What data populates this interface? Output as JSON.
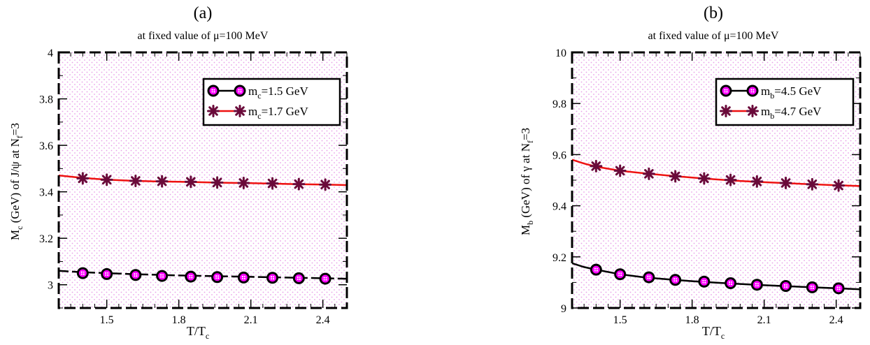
{
  "colors": {
    "background_dots": "#e8a0e8",
    "red_series": "#ee1111",
    "black_series": "#000000",
    "magenta_marker": "#ff00ff",
    "star_marker": "#6a0a3a"
  },
  "chart_data": [
    {
      "panel_label": "(a)",
      "type": "line",
      "title": "at fixed value of μ=100 MeV",
      "xlabel": {
        "base": "T/T",
        "sub": "c"
      },
      "ylabel": {
        "pre": "M",
        "sub1": "c",
        "mid": " (GeV) of J/ψ at N",
        "sub2": "f",
        "post": "=3"
      },
      "xlim": [
        1.3,
        2.5
      ],
      "ylim": [
        2.9,
        4.0
      ],
      "xticks": [
        1.5,
        1.8,
        2.1,
        2.4
      ],
      "xtick_labels": [
        "1.5",
        "1.8",
        "2.1",
        "2.4"
      ],
      "yticks": [
        3.0,
        3.2,
        3.4,
        3.6,
        3.8,
        4.0
      ],
      "ytick_labels": [
        "3",
        "3.2",
        "3.4",
        "3.6",
        "3.8",
        "4"
      ],
      "legend_position": "top-right",
      "series": [
        {
          "name": {
            "pre": "m",
            "sub": "c",
            "post": "=1.5 GeV"
          },
          "marker": "circle",
          "line_color": "black",
          "line_style": "dashed",
          "x": [
            1.3,
            1.4,
            1.5,
            1.6,
            1.7,
            1.8,
            1.9,
            2.0,
            2.1,
            2.2,
            2.3,
            2.4,
            2.5
          ],
          "y": [
            3.06,
            3.054,
            3.05,
            3.046,
            3.043,
            3.04,
            3.038,
            3.036,
            3.034,
            3.032,
            3.03,
            3.028,
            3.026
          ],
          "marker_x": [
            1.4,
            1.5,
            1.62,
            1.73,
            1.85,
            1.96,
            2.07,
            2.19,
            2.3,
            2.41
          ],
          "marker_y": [
            3.05,
            3.046,
            3.042,
            3.038,
            3.035,
            3.033,
            3.031,
            3.03,
            3.028,
            3.026
          ]
        },
        {
          "name": {
            "pre": "m",
            "sub": "c",
            "post": "=1.7 GeV"
          },
          "marker": "asterisk",
          "line_color": "red",
          "line_style": "solid",
          "x": [
            1.3,
            1.4,
            1.5,
            1.6,
            1.7,
            1.8,
            1.9,
            2.0,
            2.1,
            2.2,
            2.3,
            2.4,
            2.5
          ],
          "y": [
            3.47,
            3.46,
            3.452,
            3.448,
            3.445,
            3.443,
            3.441,
            3.439,
            3.437,
            3.435,
            3.433,
            3.431,
            3.429
          ],
          "marker_x": [
            1.4,
            1.5,
            1.62,
            1.73,
            1.85,
            1.96,
            2.07,
            2.19,
            2.3,
            2.41
          ],
          "marker_y": [
            3.458,
            3.452,
            3.447,
            3.445,
            3.443,
            3.44,
            3.438,
            3.436,
            3.433,
            3.431
          ]
        }
      ]
    },
    {
      "panel_label": "(b)",
      "type": "line",
      "title": "at fixed value of μ=100 MeV",
      "xlabel": {
        "base": "T/T",
        "sub": "c"
      },
      "ylabel": {
        "pre": "M",
        "sub1": "b",
        "mid": " (GeV) of γ at N",
        "sub2": "f",
        "post": "=3"
      },
      "xlim": [
        1.3,
        2.5
      ],
      "ylim": [
        9.0,
        10.0
      ],
      "xticks": [
        1.5,
        1.8,
        2.1,
        2.4
      ],
      "xtick_labels": [
        "1.5",
        "1.8",
        "2.1",
        "2.4"
      ],
      "yticks": [
        9.0,
        9.2,
        9.4,
        9.6,
        9.8,
        10.0
      ],
      "ytick_labels": [
        "9",
        "9.2",
        "9.4",
        "9.6",
        "9.8",
        "10"
      ],
      "legend_position": "top-right",
      "series": [
        {
          "name": {
            "pre": "m",
            "sub": "b",
            "post": "=4.5 GeV"
          },
          "marker": "circle",
          "line_color": "black",
          "line_style": "solid",
          "x": [
            1.3,
            1.35,
            1.4,
            1.5,
            1.6,
            1.7,
            1.8,
            1.9,
            2.0,
            2.1,
            2.2,
            2.3,
            2.4,
            2.5
          ],
          "y": [
            9.175,
            9.16,
            9.15,
            9.132,
            9.12,
            9.112,
            9.105,
            9.099,
            9.094,
            9.089,
            9.085,
            9.081,
            9.077,
            9.073
          ],
          "marker_x": [
            1.4,
            1.5,
            1.62,
            1.73,
            1.85,
            1.96,
            2.07,
            2.19,
            2.3,
            2.41
          ],
          "marker_y": [
            9.15,
            9.132,
            9.12,
            9.11,
            9.103,
            9.097,
            9.091,
            9.086,
            9.081,
            9.077
          ]
        },
        {
          "name": {
            "pre": "m",
            "sub": "b",
            "post": "=4.7 GeV"
          },
          "marker": "asterisk",
          "line_color": "red",
          "line_style": "solid",
          "x": [
            1.3,
            1.35,
            1.4,
            1.5,
            1.6,
            1.7,
            1.8,
            1.9,
            2.0,
            2.1,
            2.2,
            2.3,
            2.4,
            2.5
          ],
          "y": [
            9.58,
            9.565,
            9.553,
            9.537,
            9.527,
            9.518,
            9.51,
            9.503,
            9.497,
            9.492,
            9.488,
            9.484,
            9.48,
            9.477
          ],
          "marker_x": [
            1.4,
            1.5,
            1.62,
            1.73,
            1.85,
            1.96,
            2.07,
            2.19,
            2.3,
            2.41
          ],
          "marker_y": [
            9.555,
            9.537,
            9.525,
            9.515,
            9.507,
            9.501,
            9.495,
            9.489,
            9.484,
            9.479
          ]
        }
      ]
    }
  ]
}
